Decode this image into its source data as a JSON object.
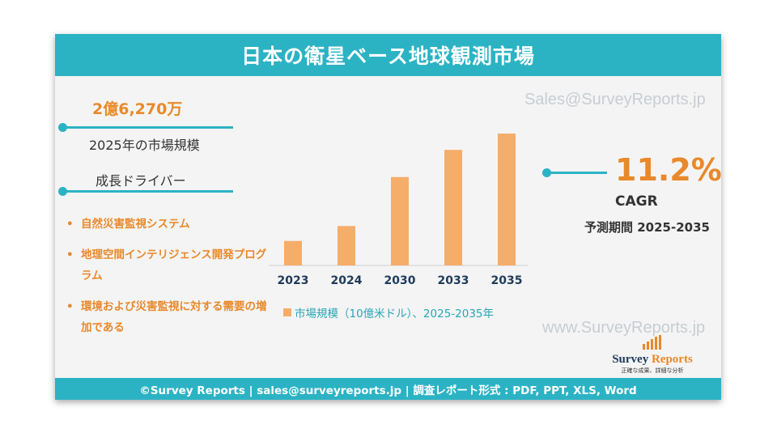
{
  "title": "日本の衛星ベース地球観測市場",
  "watermarks": {
    "top": "Sales@SurveyReports.jp",
    "bottom": "www.SurveyReports.jp"
  },
  "market": {
    "value": "2億6,270万",
    "label": "2025年の市場規模"
  },
  "drivers": {
    "heading": "成長ドライバー",
    "items": [
      "自然災害監視システム",
      "地理空間インテリジェンス開発プログラム",
      "環境および災害監視に対する需要の増加である"
    ]
  },
  "cagr": {
    "value": "11.2%",
    "label": "CAGR",
    "period": "予測期間 2025-2035"
  },
  "logo": {
    "name_part1": "Survey",
    "name_part2": "Reports",
    "tagline": "正確な成果、詳細な分析"
  },
  "footer": "©Survey Reports | sales@surveyreports.jp | 調査レポート形式 : PDF, PPT, XLS, Word",
  "colors": {
    "teal": "#2bb3c4",
    "orange": "#e8892b",
    "bar": "#f5ad6a"
  },
  "chart_data": {
    "type": "bar",
    "categories": [
      "2023",
      "2024",
      "2030",
      "2033",
      "2035"
    ],
    "values": [
      0.18,
      0.29,
      0.65,
      0.85,
      0.97
    ],
    "legend": "市場規模（10億米ドル）、2025-2035年",
    "ylim": [
      0,
      1.0
    ],
    "grid": false,
    "value_labels": false
  }
}
